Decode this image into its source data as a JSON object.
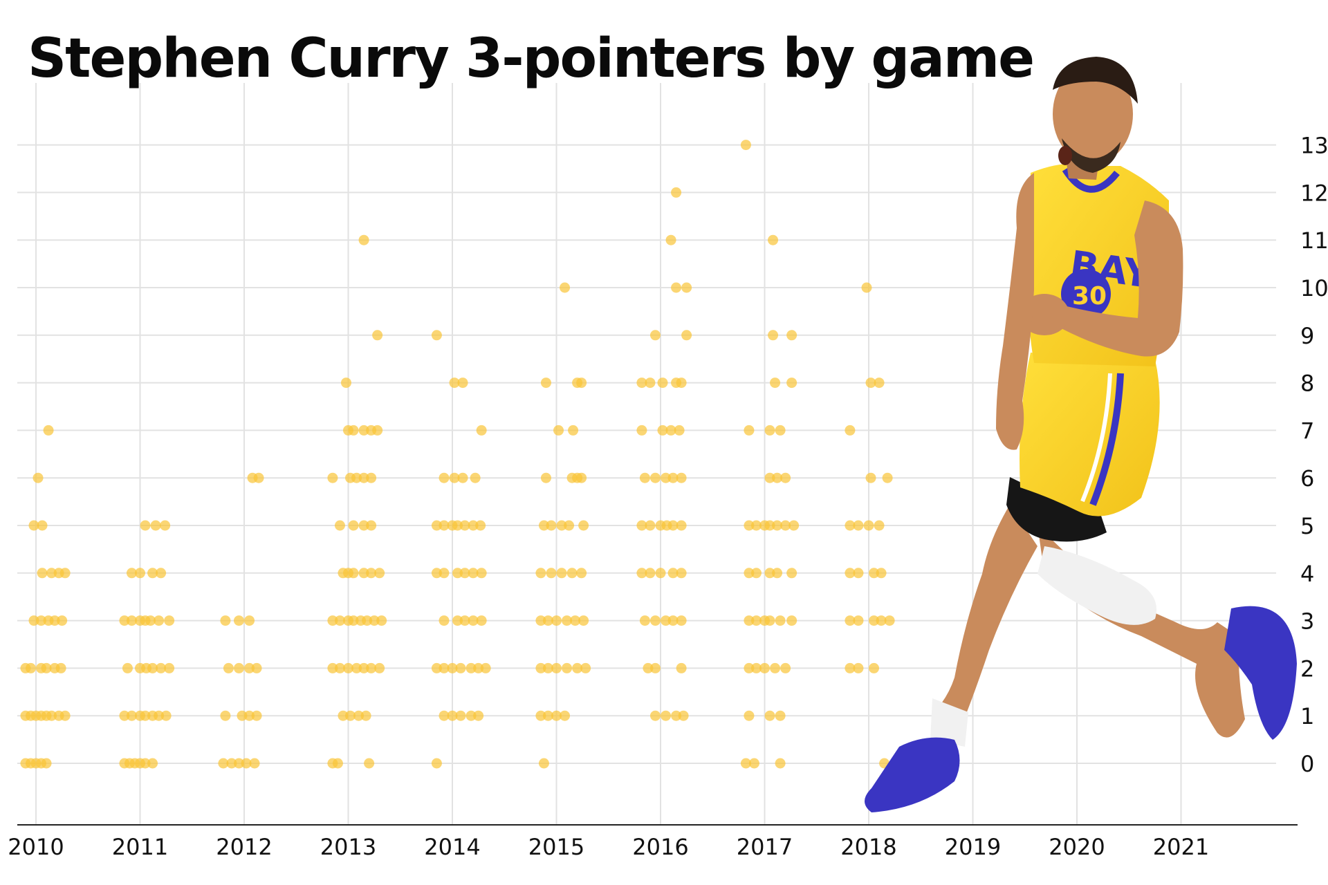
{
  "chart_data": {
    "type": "scatter",
    "title": "Stephen Curry 3-pointers by game",
    "xlabel": "",
    "ylabel": "",
    "x_ticks": [
      "2010",
      "2011",
      "2012",
      "2013",
      "2014",
      "2015",
      "2016",
      "2017",
      "2018",
      "2019",
      "2020",
      "2021"
    ],
    "y_ticks": [
      0,
      1,
      2,
      3,
      4,
      5,
      6,
      7,
      8,
      9,
      10,
      11,
      12,
      13
    ],
    "xlim": [
      2009.9,
      2022.1
    ],
    "ylim": [
      -1.3,
      14.3
    ],
    "grid": true,
    "colors": {
      "point": "#f9c437",
      "grid": "#e2e2e2",
      "axis": "#222222"
    },
    "series": [
      {
        "values": [
          [
            2009.9,
            0
          ],
          [
            2009.95,
            0
          ],
          [
            2010.0,
            0
          ],
          [
            2010.05,
            0
          ],
          [
            2010.1,
            0
          ],
          [
            2009.9,
            1
          ],
          [
            2009.95,
            1
          ],
          [
            2010.0,
            1
          ],
          [
            2010.05,
            1
          ],
          [
            2010.1,
            1
          ],
          [
            2010.15,
            1
          ],
          [
            2010.22,
            1
          ],
          [
            2010.28,
            1
          ],
          [
            2009.9,
            2
          ],
          [
            2009.95,
            2
          ],
          [
            2010.05,
            2
          ],
          [
            2010.1,
            2
          ],
          [
            2010.18,
            2
          ],
          [
            2010.24,
            2
          ],
          [
            2009.98,
            3
          ],
          [
            2010.05,
            3
          ],
          [
            2010.12,
            3
          ],
          [
            2010.18,
            3
          ],
          [
            2010.25,
            3
          ],
          [
            2010.06,
            4
          ],
          [
            2010.15,
            4
          ],
          [
            2010.22,
            4
          ],
          [
            2010.28,
            4
          ],
          [
            2009.98,
            5
          ],
          [
            2010.06,
            5
          ],
          [
            2010.02,
            6
          ],
          [
            2010.12,
            7
          ],
          [
            2010.85,
            0
          ],
          [
            2010.9,
            0
          ],
          [
            2010.95,
            0
          ],
          [
            2011.0,
            0
          ],
          [
            2011.05,
            0
          ],
          [
            2011.12,
            0
          ],
          [
            2010.85,
            1
          ],
          [
            2010.92,
            1
          ],
          [
            2011.0,
            1
          ],
          [
            2011.05,
            1
          ],
          [
            2011.12,
            1
          ],
          [
            2011.18,
            1
          ],
          [
            2011.25,
            1
          ],
          [
            2010.88,
            2
          ],
          [
            2011.0,
            2
          ],
          [
            2011.06,
            2
          ],
          [
            2011.12,
            2
          ],
          [
            2011.2,
            2
          ],
          [
            2011.28,
            2
          ],
          [
            2010.85,
            3
          ],
          [
            2010.92,
            3
          ],
          [
            2011.0,
            3
          ],
          [
            2011.05,
            3
          ],
          [
            2011.1,
            3
          ],
          [
            2011.18,
            3
          ],
          [
            2011.28,
            3
          ],
          [
            2010.92,
            4
          ],
          [
            2011.0,
            4
          ],
          [
            2011.12,
            4
          ],
          [
            2011.2,
            4
          ],
          [
            2011.05,
            5
          ],
          [
            2011.15,
            5
          ],
          [
            2011.24,
            5
          ],
          [
            2011.8,
            0
          ],
          [
            2011.88,
            0
          ],
          [
            2011.95,
            0
          ],
          [
            2012.02,
            0
          ],
          [
            2012.1,
            0
          ],
          [
            2011.82,
            1
          ],
          [
            2011.98,
            1
          ],
          [
            2012.05,
            1
          ],
          [
            2012.12,
            1
          ],
          [
            2011.85,
            2
          ],
          [
            2011.95,
            2
          ],
          [
            2012.05,
            2
          ],
          [
            2012.12,
            2
          ],
          [
            2011.82,
            3
          ],
          [
            2011.95,
            3
          ],
          [
            2012.05,
            3
          ],
          [
            2012.08,
            6
          ],
          [
            2012.14,
            6
          ],
          [
            2012.85,
            0
          ],
          [
            2012.9,
            0
          ],
          [
            2013.2,
            0
          ],
          [
            2012.95,
            1
          ],
          [
            2013.02,
            1
          ],
          [
            2013.1,
            1
          ],
          [
            2013.17,
            1
          ],
          [
            2012.85,
            2
          ],
          [
            2012.92,
            2
          ],
          [
            2013.0,
            2
          ],
          [
            2013.08,
            2
          ],
          [
            2013.15,
            2
          ],
          [
            2013.22,
            2
          ],
          [
            2013.3,
            2
          ],
          [
            2012.85,
            3
          ],
          [
            2012.92,
            3
          ],
          [
            2013.0,
            3
          ],
          [
            2013.05,
            3
          ],
          [
            2013.12,
            3
          ],
          [
            2013.18,
            3
          ],
          [
            2013.25,
            3
          ],
          [
            2013.32,
            3
          ],
          [
            2012.95,
            4
          ],
          [
            2013.0,
            4
          ],
          [
            2013.05,
            4
          ],
          [
            2013.15,
            4
          ],
          [
            2013.22,
            4
          ],
          [
            2013.3,
            4
          ],
          [
            2012.92,
            5
          ],
          [
            2013.05,
            5
          ],
          [
            2013.15,
            5
          ],
          [
            2013.22,
            5
          ],
          [
            2012.85,
            6
          ],
          [
            2013.02,
            6
          ],
          [
            2013.08,
            6
          ],
          [
            2013.15,
            6
          ],
          [
            2013.22,
            6
          ],
          [
            2013.0,
            7
          ],
          [
            2013.05,
            7
          ],
          [
            2013.15,
            7
          ],
          [
            2013.22,
            7
          ],
          [
            2013.28,
            7
          ],
          [
            2012.98,
            8
          ],
          [
            2013.28,
            9
          ],
          [
            2013.15,
            11
          ],
          [
            2013.85,
            0
          ],
          [
            2013.92,
            1
          ],
          [
            2014.0,
            1
          ],
          [
            2014.08,
            1
          ],
          [
            2014.18,
            1
          ],
          [
            2014.25,
            1
          ],
          [
            2013.85,
            2
          ],
          [
            2013.92,
            2
          ],
          [
            2014.0,
            2
          ],
          [
            2014.08,
            2
          ],
          [
            2014.18,
            2
          ],
          [
            2014.25,
            2
          ],
          [
            2014.32,
            2
          ],
          [
            2013.92,
            3
          ],
          [
            2014.05,
            3
          ],
          [
            2014.12,
            3
          ],
          [
            2014.2,
            3
          ],
          [
            2014.28,
            3
          ],
          [
            2013.85,
            4
          ],
          [
            2013.92,
            4
          ],
          [
            2014.05,
            4
          ],
          [
            2014.12,
            4
          ],
          [
            2014.2,
            4
          ],
          [
            2014.28,
            4
          ],
          [
            2013.85,
            5
          ],
          [
            2013.92,
            5
          ],
          [
            2014.0,
            5
          ],
          [
            2014.05,
            5
          ],
          [
            2014.12,
            5
          ],
          [
            2014.2,
            5
          ],
          [
            2014.27,
            5
          ],
          [
            2013.92,
            6
          ],
          [
            2014.02,
            6
          ],
          [
            2014.1,
            6
          ],
          [
            2014.22,
            6
          ],
          [
            2014.28,
            7
          ],
          [
            2014.02,
            8
          ],
          [
            2014.1,
            8
          ],
          [
            2013.85,
            9
          ],
          [
            2014.88,
            0
          ],
          [
            2014.85,
            1
          ],
          [
            2014.92,
            1
          ],
          [
            2015.0,
            1
          ],
          [
            2015.08,
            1
          ],
          [
            2014.85,
            2
          ],
          [
            2014.92,
            2
          ],
          [
            2015.0,
            2
          ],
          [
            2015.1,
            2
          ],
          [
            2015.2,
            2
          ],
          [
            2015.28,
            2
          ],
          [
            2014.85,
            3
          ],
          [
            2014.92,
            3
          ],
          [
            2015.0,
            3
          ],
          [
            2015.1,
            3
          ],
          [
            2015.18,
            3
          ],
          [
            2015.26,
            3
          ],
          [
            2014.85,
            4
          ],
          [
            2014.95,
            4
          ],
          [
            2015.05,
            4
          ],
          [
            2015.15,
            4
          ],
          [
            2015.24,
            4
          ],
          [
            2014.88,
            5
          ],
          [
            2014.95,
            5
          ],
          [
            2015.05,
            5
          ],
          [
            2015.12,
            5
          ],
          [
            2015.26,
            5
          ],
          [
            2014.9,
            6
          ],
          [
            2015.15,
            6
          ],
          [
            2015.2,
            6
          ],
          [
            2015.24,
            6
          ],
          [
            2015.02,
            7
          ],
          [
            2015.16,
            7
          ],
          [
            2014.9,
            8
          ],
          [
            2015.2,
            8
          ],
          [
            2015.24,
            8
          ],
          [
            2015.08,
            10
          ],
          [
            2015.95,
            1
          ],
          [
            2016.05,
            1
          ],
          [
            2016.15,
            1
          ],
          [
            2016.22,
            1
          ],
          [
            2015.88,
            2
          ],
          [
            2015.95,
            2
          ],
          [
            2016.2,
            2
          ],
          [
            2015.85,
            3
          ],
          [
            2015.95,
            3
          ],
          [
            2016.05,
            3
          ],
          [
            2016.12,
            3
          ],
          [
            2016.2,
            3
          ],
          [
            2015.82,
            4
          ],
          [
            2015.9,
            4
          ],
          [
            2016.0,
            4
          ],
          [
            2016.12,
            4
          ],
          [
            2016.2,
            4
          ],
          [
            2015.82,
            5
          ],
          [
            2015.9,
            5
          ],
          [
            2016.0,
            5
          ],
          [
            2016.06,
            5
          ],
          [
            2016.12,
            5
          ],
          [
            2016.2,
            5
          ],
          [
            2015.85,
            6
          ],
          [
            2015.95,
            6
          ],
          [
            2016.05,
            6
          ],
          [
            2016.12,
            6
          ],
          [
            2016.2,
            6
          ],
          [
            2015.82,
            7
          ],
          [
            2016.02,
            7
          ],
          [
            2016.1,
            7
          ],
          [
            2016.18,
            7
          ],
          [
            2015.82,
            8
          ],
          [
            2015.9,
            8
          ],
          [
            2016.02,
            8
          ],
          [
            2016.15,
            8
          ],
          [
            2016.2,
            8
          ],
          [
            2015.95,
            9
          ],
          [
            2016.25,
            9
          ],
          [
            2016.15,
            10
          ],
          [
            2016.25,
            10
          ],
          [
            2016.1,
            11
          ],
          [
            2016.15,
            12
          ],
          [
            2016.82,
            0
          ],
          [
            2016.9,
            0
          ],
          [
            2017.15,
            0
          ],
          [
            2016.85,
            1
          ],
          [
            2017.05,
            1
          ],
          [
            2017.15,
            1
          ],
          [
            2016.85,
            2
          ],
          [
            2016.92,
            2
          ],
          [
            2017.0,
            2
          ],
          [
            2017.1,
            2
          ],
          [
            2017.2,
            2
          ],
          [
            2016.85,
            3
          ],
          [
            2016.92,
            3
          ],
          [
            2017.0,
            3
          ],
          [
            2017.05,
            3
          ],
          [
            2017.15,
            3
          ],
          [
            2017.26,
            3
          ],
          [
            2016.85,
            4
          ],
          [
            2016.92,
            4
          ],
          [
            2017.05,
            4
          ],
          [
            2017.12,
            4
          ],
          [
            2017.26,
            4
          ],
          [
            2016.85,
            5
          ],
          [
            2016.92,
            5
          ],
          [
            2017.0,
            5
          ],
          [
            2017.05,
            5
          ],
          [
            2017.12,
            5
          ],
          [
            2017.2,
            5
          ],
          [
            2017.28,
            5
          ],
          [
            2017.05,
            6
          ],
          [
            2017.12,
            6
          ],
          [
            2017.2,
            6
          ],
          [
            2016.85,
            7
          ],
          [
            2017.05,
            7
          ],
          [
            2017.15,
            7
          ],
          [
            2017.1,
            8
          ],
          [
            2017.26,
            8
          ],
          [
            2017.08,
            9
          ],
          [
            2017.26,
            9
          ],
          [
            2017.08,
            11
          ],
          [
            2016.82,
            13
          ],
          [
            2018.15,
            0
          ],
          [
            2017.82,
            2
          ],
          [
            2017.9,
            2
          ],
          [
            2018.05,
            2
          ],
          [
            2017.82,
            3
          ],
          [
            2017.9,
            3
          ],
          [
            2018.05,
            3
          ],
          [
            2018.12,
            3
          ],
          [
            2018.2,
            3
          ],
          [
            2017.82,
            4
          ],
          [
            2017.9,
            4
          ],
          [
            2018.05,
            4
          ],
          [
            2018.12,
            4
          ],
          [
            2017.82,
            5
          ],
          [
            2017.9,
            5
          ],
          [
            2018.0,
            5
          ],
          [
            2018.1,
            5
          ],
          [
            2018.02,
            6
          ],
          [
            2018.18,
            6
          ],
          [
            2017.82,
            7
          ],
          [
            2018.02,
            8
          ],
          [
            2018.1,
            8
          ],
          [
            2017.98,
            10
          ]
        ]
      }
    ]
  }
}
